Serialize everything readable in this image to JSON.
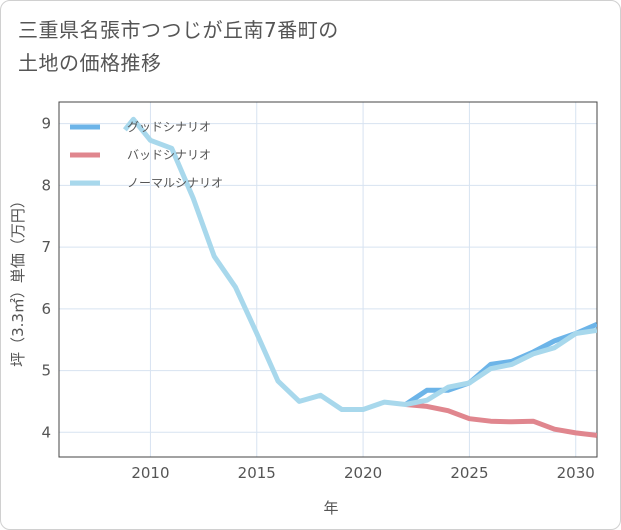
{
  "title_lines": [
    "三重県名張市つつじが丘南7番町の",
    "土地の価格推移"
  ],
  "chart_data": {
    "type": "line",
    "title": "三重県名張市つつじが丘南7番町の土地の価格推移",
    "xlabel": "年",
    "ylabel": "坪（3.3㎡）単価（万円）",
    "xlim": [
      2005.7,
      2031
    ],
    "ylim": [
      3.6,
      9.35
    ],
    "xticks": [
      2010,
      2015,
      2020,
      2025,
      2030
    ],
    "yticks": [
      4,
      5,
      6,
      7,
      8,
      9
    ],
    "grid": true,
    "legend_position": "top-left",
    "series": [
      {
        "name": "グッドシナリオ",
        "color": "#6cb4e8",
        "x": [
          2022,
          2023,
          2024,
          2025,
          2026,
          2027,
          2028,
          2029,
          2030,
          2031
        ],
        "values": [
          4.45,
          4.68,
          4.68,
          4.8,
          5.1,
          5.15,
          5.3,
          5.48,
          5.6,
          5.75
        ]
      },
      {
        "name": "バッドシナリオ",
        "color": "#e0868e",
        "x": [
          2022,
          2023,
          2024,
          2025,
          2026,
          2027,
          2028,
          2029,
          2030,
          2031
        ],
        "values": [
          4.45,
          4.42,
          4.35,
          4.22,
          4.18,
          4.17,
          4.18,
          4.05,
          3.99,
          3.95
        ]
      },
      {
        "name": "ノーマルシナリオ",
        "color": "#a8d8ec",
        "x": [
          2008.8,
          2009.2,
          2010,
          2011,
          2012,
          2013,
          2014,
          2015,
          2016,
          2017,
          2018,
          2019,
          2020,
          2021,
          2022,
          2023,
          2024,
          2025,
          2026,
          2027,
          2028,
          2029,
          2030,
          2031
        ],
        "values": [
          8.9,
          9.07,
          8.73,
          8.6,
          7.8,
          6.85,
          6.35,
          5.6,
          4.83,
          4.5,
          4.6,
          4.37,
          4.37,
          4.49,
          4.45,
          4.52,
          4.73,
          4.8,
          5.03,
          5.1,
          5.27,
          5.37,
          5.6,
          5.65
        ]
      }
    ]
  }
}
